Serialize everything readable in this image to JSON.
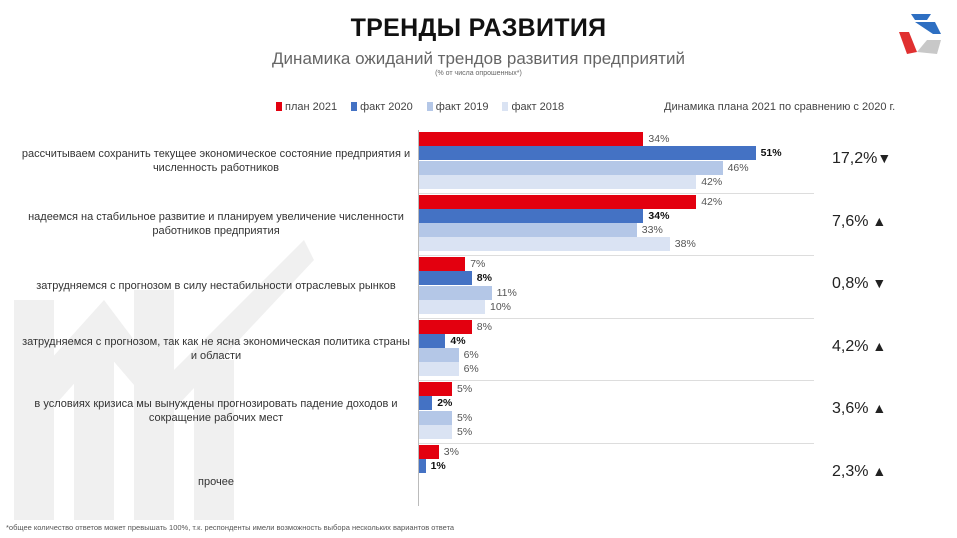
{
  "header": {
    "title": "ТРЕНДЫ РАЗВИТИЯ",
    "subtitle": "Динамика ожиданий трендов развития предприятий",
    "note": "(% от числа опрошенных*)"
  },
  "dynamics_header": "Динамика плана 2021 по сравнению с 2020 г.",
  "footnote": "*общее количество ответов  может превышать 100%, т.к. респонденты имели возможность выбора нескольких вариантов ответа",
  "colors": {
    "план 2021": "#e3000f",
    "факт 2020": "#4472c4",
    "факт 2019": "#b4c7e7",
    "факт 2018": "#dae3f3"
  },
  "chart_data": {
    "type": "bar",
    "orientation": "horizontal",
    "categories": [
      "рассчитываем сохранить текущее экономическое состояние предприятия и численность работников",
      "надеемся на стабильное развитие и планируем увеличение численности работников предприятия",
      "затрудняемся с прогнозом в силу нестабильности отраслевых рынков",
      "затрудняемся с прогнозом, так как не ясна экономическая политика страны и области",
      "в условиях кризиса мы вынуждены прогнозировать падение доходов и сокращение рабочих мест",
      "прочее"
    ],
    "series": [
      {
        "name": "план 2021",
        "values": [
          34,
          42,
          7,
          8,
          5,
          3
        ]
      },
      {
        "name": "факт 2020",
        "values": [
          51,
          34,
          8,
          4,
          2,
          1
        ]
      },
      {
        "name": "факт 2019",
        "values": [
          46,
          33,
          11,
          6,
          5,
          null
        ]
      },
      {
        "name": "факт 2018",
        "values": [
          42,
          38,
          10,
          6,
          5,
          null
        ]
      }
    ],
    "value_suffix": "%",
    "legend": "top",
    "dynamics": [
      {
        "value": "17,2%",
        "direction": "down"
      },
      {
        "value": "7,6%",
        "direction": "up"
      },
      {
        "value": "0,8%",
        "direction": "down"
      },
      {
        "value": "4,2%",
        "direction": "up"
      },
      {
        "value": "3,6%",
        "direction": "up"
      },
      {
        "value": "2,3%",
        "direction": "up"
      }
    ]
  }
}
